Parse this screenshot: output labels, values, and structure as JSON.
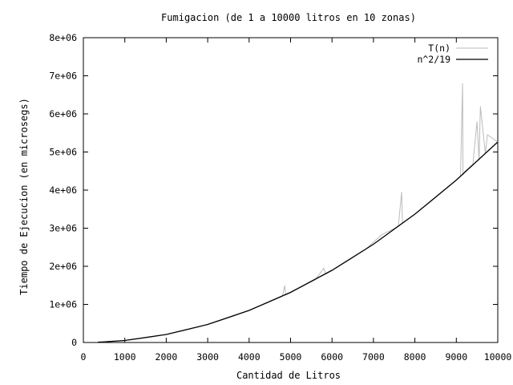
{
  "chart_data": {
    "type": "line",
    "title": "Fumigacion (de 1 a 10000 litros en 10 zonas)",
    "xlabel": "Cantidad de Litros",
    "ylabel": "Tiempo de Ejecucion (en microsegs)",
    "xlim": [
      0,
      10000
    ],
    "ylim": [
      0,
      8000000
    ],
    "x_ticks": [
      0,
      1000,
      2000,
      3000,
      4000,
      5000,
      6000,
      7000,
      8000,
      9000,
      10000
    ],
    "x_tick_labels": [
      "0",
      "1000",
      "2000",
      "3000",
      "4000",
      "5000",
      "6000",
      "7000",
      "8000",
      "9000",
      "10000"
    ],
    "y_ticks": [
      0,
      1000000,
      2000000,
      3000000,
      4000000,
      5000000,
      6000000,
      7000000,
      8000000
    ],
    "y_tick_labels": [
      "0",
      "1e+06",
      "2e+06",
      "3e+06",
      "4e+06",
      "5e+06",
      "6e+06",
      "7e+06",
      "8e+06"
    ],
    "grid": false,
    "legend_position": "top-right",
    "series": [
      {
        "name": "T(n)",
        "color": "#bbbbbb",
        "x": [
          400,
          800,
          1200,
          1600,
          2000,
          2400,
          2800,
          3200,
          3600,
          4000,
          4400,
          4800,
          4860,
          4880,
          5200,
          5600,
          5800,
          5850,
          6000,
          6400,
          6800,
          7200,
          7600,
          7680,
          7700,
          8000,
          8400,
          8800,
          9100,
          9150,
          9160,
          9200,
          9400,
          9500,
          9550,
          9580,
          9700,
          9750,
          10000
        ],
        "y": [
          8500,
          34000,
          76000,
          135000,
          211000,
          304000,
          413000,
          540000,
          684000,
          844000,
          1020000,
          1212000,
          1500000,
          1245000,
          1425000,
          1650000,
          1950000,
          1800000,
          1895000,
          2156000,
          2434000,
          2830000,
          3040000,
          3950000,
          3130000,
          3370000,
          3715000,
          4078000,
          4360000,
          6800000,
          4400000,
          4480000,
          4680000,
          5800000,
          4780000,
          6200000,
          4960000,
          5450000,
          5263000
        ]
      },
      {
        "name": "n^2/19",
        "color": "#000000",
        "expression": "n^2/19",
        "x": [
          350,
          1000,
          2000,
          3000,
          4000,
          5000,
          6000,
          7000,
          8000,
          9000,
          10000
        ],
        "y": [
          6447,
          52632,
          210526,
          473684,
          842105,
          1315789,
          1894737,
          2578947,
          3368421,
          4263158,
          5263158
        ]
      }
    ]
  }
}
